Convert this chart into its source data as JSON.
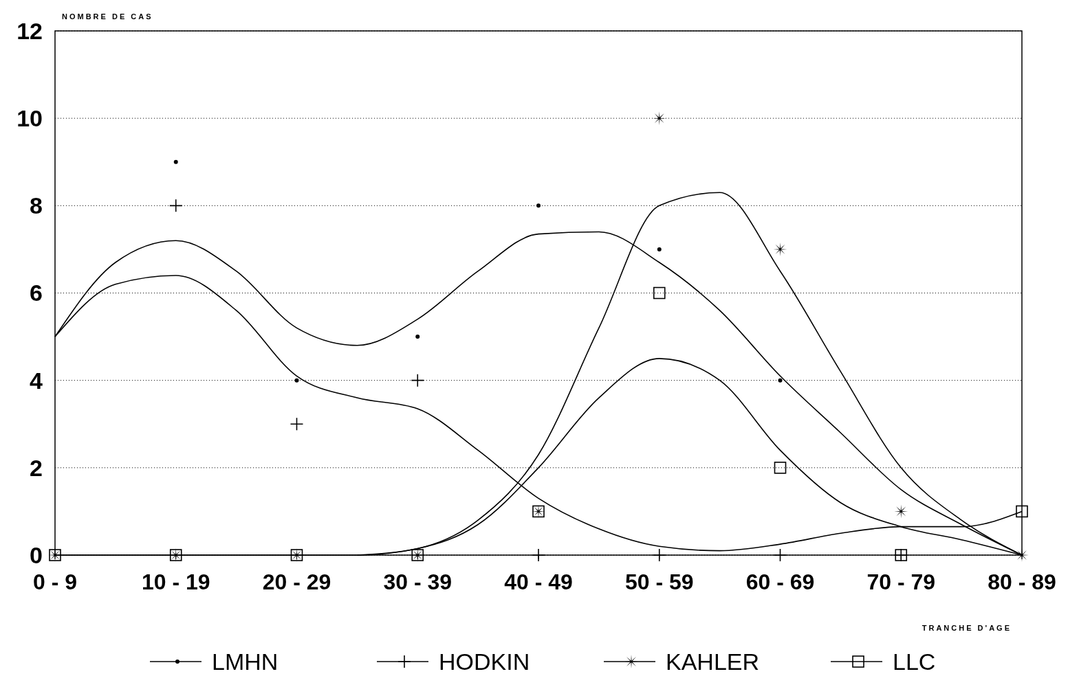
{
  "chart_data": {
    "type": "scatter",
    "xlabel": "TRANCHE D'AGE",
    "ylabel": "NOMBRE DE CAS",
    "categories": [
      "0 - 9",
      null,
      "10 - 19",
      null,
      "20 - 29",
      null,
      "30 - 39",
      null,
      "40 - 49",
      null,
      "50 - 59",
      null,
      "60 - 69",
      null,
      "70 - 79",
      null,
      "80 - 89"
    ],
    "ylim": [
      0,
      12
    ],
    "yticks": [
      0,
      2,
      4,
      6,
      8,
      10,
      12
    ],
    "grid": "y",
    "legend": "bottom",
    "series": [
      {
        "name": "LMHN",
        "marker": "circle",
        "color": "#000000",
        "values": [
          null,
          null,
          9,
          null,
          4,
          null,
          5,
          null,
          8,
          null,
          7,
          null,
          4,
          null,
          null,
          null,
          null
        ]
      },
      {
        "name": "HODKIN",
        "marker": "cross",
        "color": "#000000",
        "values": [
          null,
          null,
          8,
          null,
          3,
          null,
          4,
          null,
          0,
          null,
          0,
          null,
          0,
          null,
          0,
          null,
          null
        ]
      },
      {
        "name": "KAHLER",
        "marker": "star",
        "color": "#000000",
        "values": [
          0,
          null,
          0,
          null,
          0,
          null,
          0,
          null,
          1,
          null,
          10,
          null,
          7,
          null,
          1,
          null,
          0
        ]
      },
      {
        "name": "LLC",
        "marker": "square",
        "color": "#000000",
        "values": [
          0,
          null,
          0,
          null,
          0,
          null,
          0,
          null,
          1,
          null,
          6,
          null,
          2,
          null,
          0,
          null,
          1
        ]
      },
      {
        "type": "line",
        "color": "#000000",
        "values": [
          5,
          6.7,
          7.2,
          6.5,
          5.2,
          4.8,
          5.4,
          6.5,
          7.35,
          7.4,
          6.7,
          5.6,
          4.1,
          2.8,
          1.5,
          0.7,
          0
        ]
      },
      {
        "type": "line",
        "color": "#000000",
        "values": [
          5,
          6.2,
          6.4,
          5.6,
          4.1,
          3.6,
          3.35,
          2.4,
          1.3,
          0.6,
          0.2,
          0.1,
          0.25,
          0.5,
          0.65,
          0.65,
          1
        ]
      },
      {
        "type": "line",
        "color": "#000000",
        "values": [
          null,
          null,
          null,
          null,
          null,
          0,
          0.15,
          0.8,
          2.3,
          5.2,
          8,
          8.3,
          6.5,
          4.2,
          2,
          0.8,
          0
        ]
      },
      {
        "type": "line",
        "color": "#000000",
        "values": [
          0,
          0,
          0,
          0,
          0,
          0,
          0.15,
          0.7,
          2,
          3.6,
          4.5,
          4,
          2.4,
          1.2,
          0.65,
          0.35,
          0
        ]
      }
    ]
  }
}
